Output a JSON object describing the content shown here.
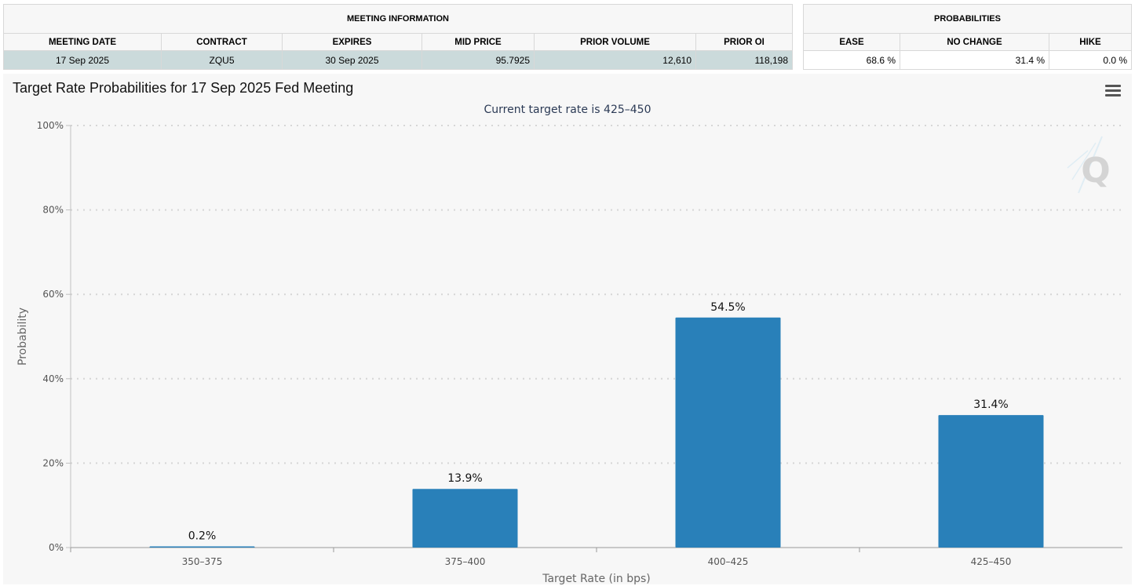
{
  "meeting_info": {
    "group_title": "MEETING INFORMATION",
    "headers": [
      "MEETING DATE",
      "CONTRACT",
      "EXPIRES",
      "MID PRICE",
      "PRIOR VOLUME",
      "PRIOR OI"
    ],
    "row": {
      "meeting_date": "17 Sep 2025",
      "contract": "ZQU5",
      "expires": "30 Sep 2025",
      "mid_price": "95.7925",
      "prior_volume": "12,610",
      "prior_oi": "118,198"
    }
  },
  "probabilities": {
    "group_title": "PROBABILITIES",
    "headers": [
      "EASE",
      "NO CHANGE",
      "HIKE"
    ],
    "row": {
      "ease": "68.6 %",
      "no_change": "31.4 %",
      "hike": "0.0 %"
    }
  },
  "chart_data": {
    "type": "bar",
    "title": "Target Rate Probabilities for 17 Sep 2025 Fed Meeting",
    "subtitle": "Current target rate is 425–450",
    "xlabel": "Target Rate (in bps)",
    "ylabel": "Probability",
    "categories": [
      "350–375",
      "375–400",
      "400–425",
      "425–450"
    ],
    "values": [
      0.2,
      13.9,
      54.5,
      31.4
    ],
    "data_labels": [
      "0.2%",
      "13.9%",
      "54.5%",
      "31.4%"
    ],
    "ylim": [
      0,
      100
    ],
    "yticks": [
      "0%",
      "20%",
      "40%",
      "60%",
      "80%",
      "100%"
    ],
    "ytick_values": [
      0,
      20,
      40,
      60,
      80,
      100
    ],
    "grid": true,
    "bar_color": "#2980b9"
  },
  "watermark_letter": "Q"
}
